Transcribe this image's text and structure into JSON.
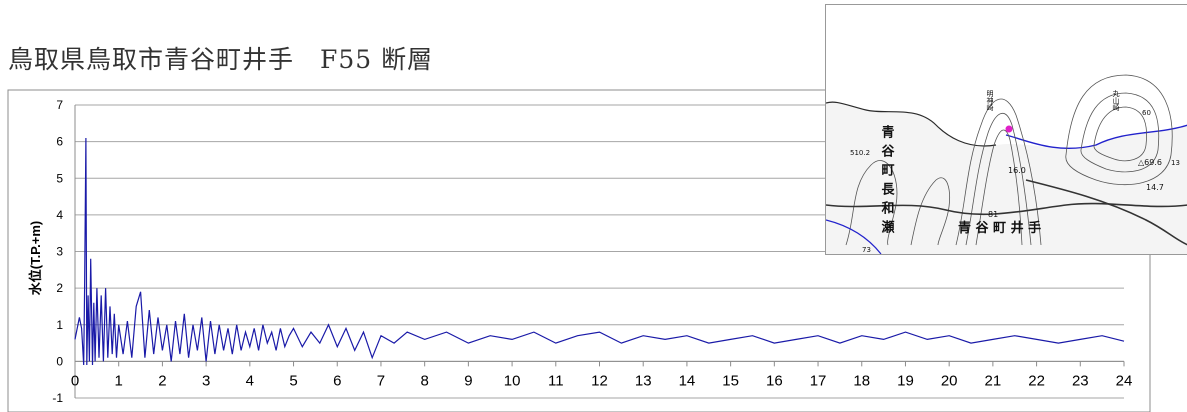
{
  "title": "鳥取県鳥取市青谷町井手　F55 断層",
  "chart_data": {
    "type": "line",
    "ylabel": "水位(T.P.+m)",
    "xlabel": "",
    "xlim": [
      0,
      24
    ],
    "ylim": [
      -1,
      7
    ],
    "xticks": [
      "0",
      "1",
      "2",
      "3",
      "4",
      "5",
      "6",
      "7",
      "8",
      "9",
      "10",
      "11",
      "12",
      "13",
      "14",
      "15",
      "16",
      "17",
      "18",
      "19",
      "20",
      "21",
      "22",
      "23",
      "24"
    ],
    "yticks": [
      "-1",
      "0",
      "1",
      "2",
      "3",
      "4",
      "5",
      "6",
      "7"
    ],
    "grid": true,
    "legend": "none",
    "series_color": "#1a1aa8",
    "series": [
      {
        "x": [
          0,
          0.1,
          0.15,
          0.2,
          0.22,
          0.25,
          0.27,
          0.3,
          0.33,
          0.36,
          0.4,
          0.43,
          0.46,
          0.5,
          0.55,
          0.6,
          0.65,
          0.7,
          0.75,
          0.8,
          0.85,
          0.9,
          0.95,
          1.0,
          1.1,
          1.2,
          1.3,
          1.4,
          1.5,
          1.6,
          1.7,
          1.8,
          1.9,
          2.0,
          2.1,
          2.2,
          2.3,
          2.4,
          2.5,
          2.6,
          2.7,
          2.8,
          2.9,
          3.0,
          3.1,
          3.2,
          3.3,
          3.4,
          3.5,
          3.6,
          3.7,
          3.8,
          3.9,
          4.0,
          4.1,
          4.2,
          4.3,
          4.4,
          4.5,
          4.6,
          4.7,
          4.8,
          4.9,
          5.0,
          5.2,
          5.4,
          5.6,
          5.8,
          6.0,
          6.2,
          6.4,
          6.6,
          6.8,
          7.0,
          7.3,
          7.6,
          8.0,
          8.5,
          9.0,
          9.5,
          10.0,
          10.5,
          11.0,
          11.5,
          12.0,
          12.5,
          13.0,
          13.5,
          14.0,
          14.5,
          15.0,
          15.5,
          16.0,
          16.5,
          17.0,
          17.5,
          18.0,
          18.5,
          19.0,
          19.5,
          20.0,
          20.5,
          21.0,
          21.5,
          22.0,
          22.5,
          23.0,
          23.5,
          24.0
        ],
        "values": [
          0.6,
          1.2,
          0.9,
          -0.1,
          2.0,
          6.1,
          -0.1,
          1.8,
          0.0,
          2.8,
          -0.1,
          1.6,
          0.0,
          2.0,
          0.1,
          1.8,
          0.0,
          2.0,
          0.1,
          1.5,
          0.2,
          1.3,
          0.1,
          1.0,
          0.2,
          1.1,
          0.1,
          1.5,
          1.9,
          0.1,
          1.4,
          0.2,
          1.2,
          0.3,
          1.0,
          0.0,
          1.1,
          0.2,
          1.3,
          0.1,
          1.0,
          0.3,
          1.2,
          0.0,
          1.1,
          0.2,
          1.0,
          0.3,
          0.9,
          0.2,
          1.0,
          0.3,
          0.8,
          0.4,
          0.9,
          0.3,
          1.0,
          0.5,
          0.8,
          0.3,
          0.9,
          0.4,
          0.7,
          0.9,
          0.4,
          0.8,
          0.5,
          1.0,
          0.4,
          0.9,
          0.3,
          0.8,
          0.1,
          0.7,
          0.5,
          0.8,
          0.6,
          0.8,
          0.5,
          0.7,
          0.6,
          0.8,
          0.5,
          0.7,
          0.8,
          0.5,
          0.7,
          0.6,
          0.7,
          0.5,
          0.6,
          0.7,
          0.5,
          0.6,
          0.7,
          0.5,
          0.7,
          0.6,
          0.8,
          0.6,
          0.7,
          0.5,
          0.6,
          0.7,
          0.6,
          0.5,
          0.6,
          0.7,
          0.55
        ]
      }
    ]
  },
  "map": {
    "labels": [
      "明神崎",
      "丸山崎",
      "青谷町長和瀬",
      "青 谷 町 井 手",
      "16.0",
      "△69.6",
      "14.7",
      "81",
      "510.2",
      "13",
      "60",
      "73"
    ],
    "marker_color": "#e020c8",
    "water_color": "#2222cc"
  }
}
